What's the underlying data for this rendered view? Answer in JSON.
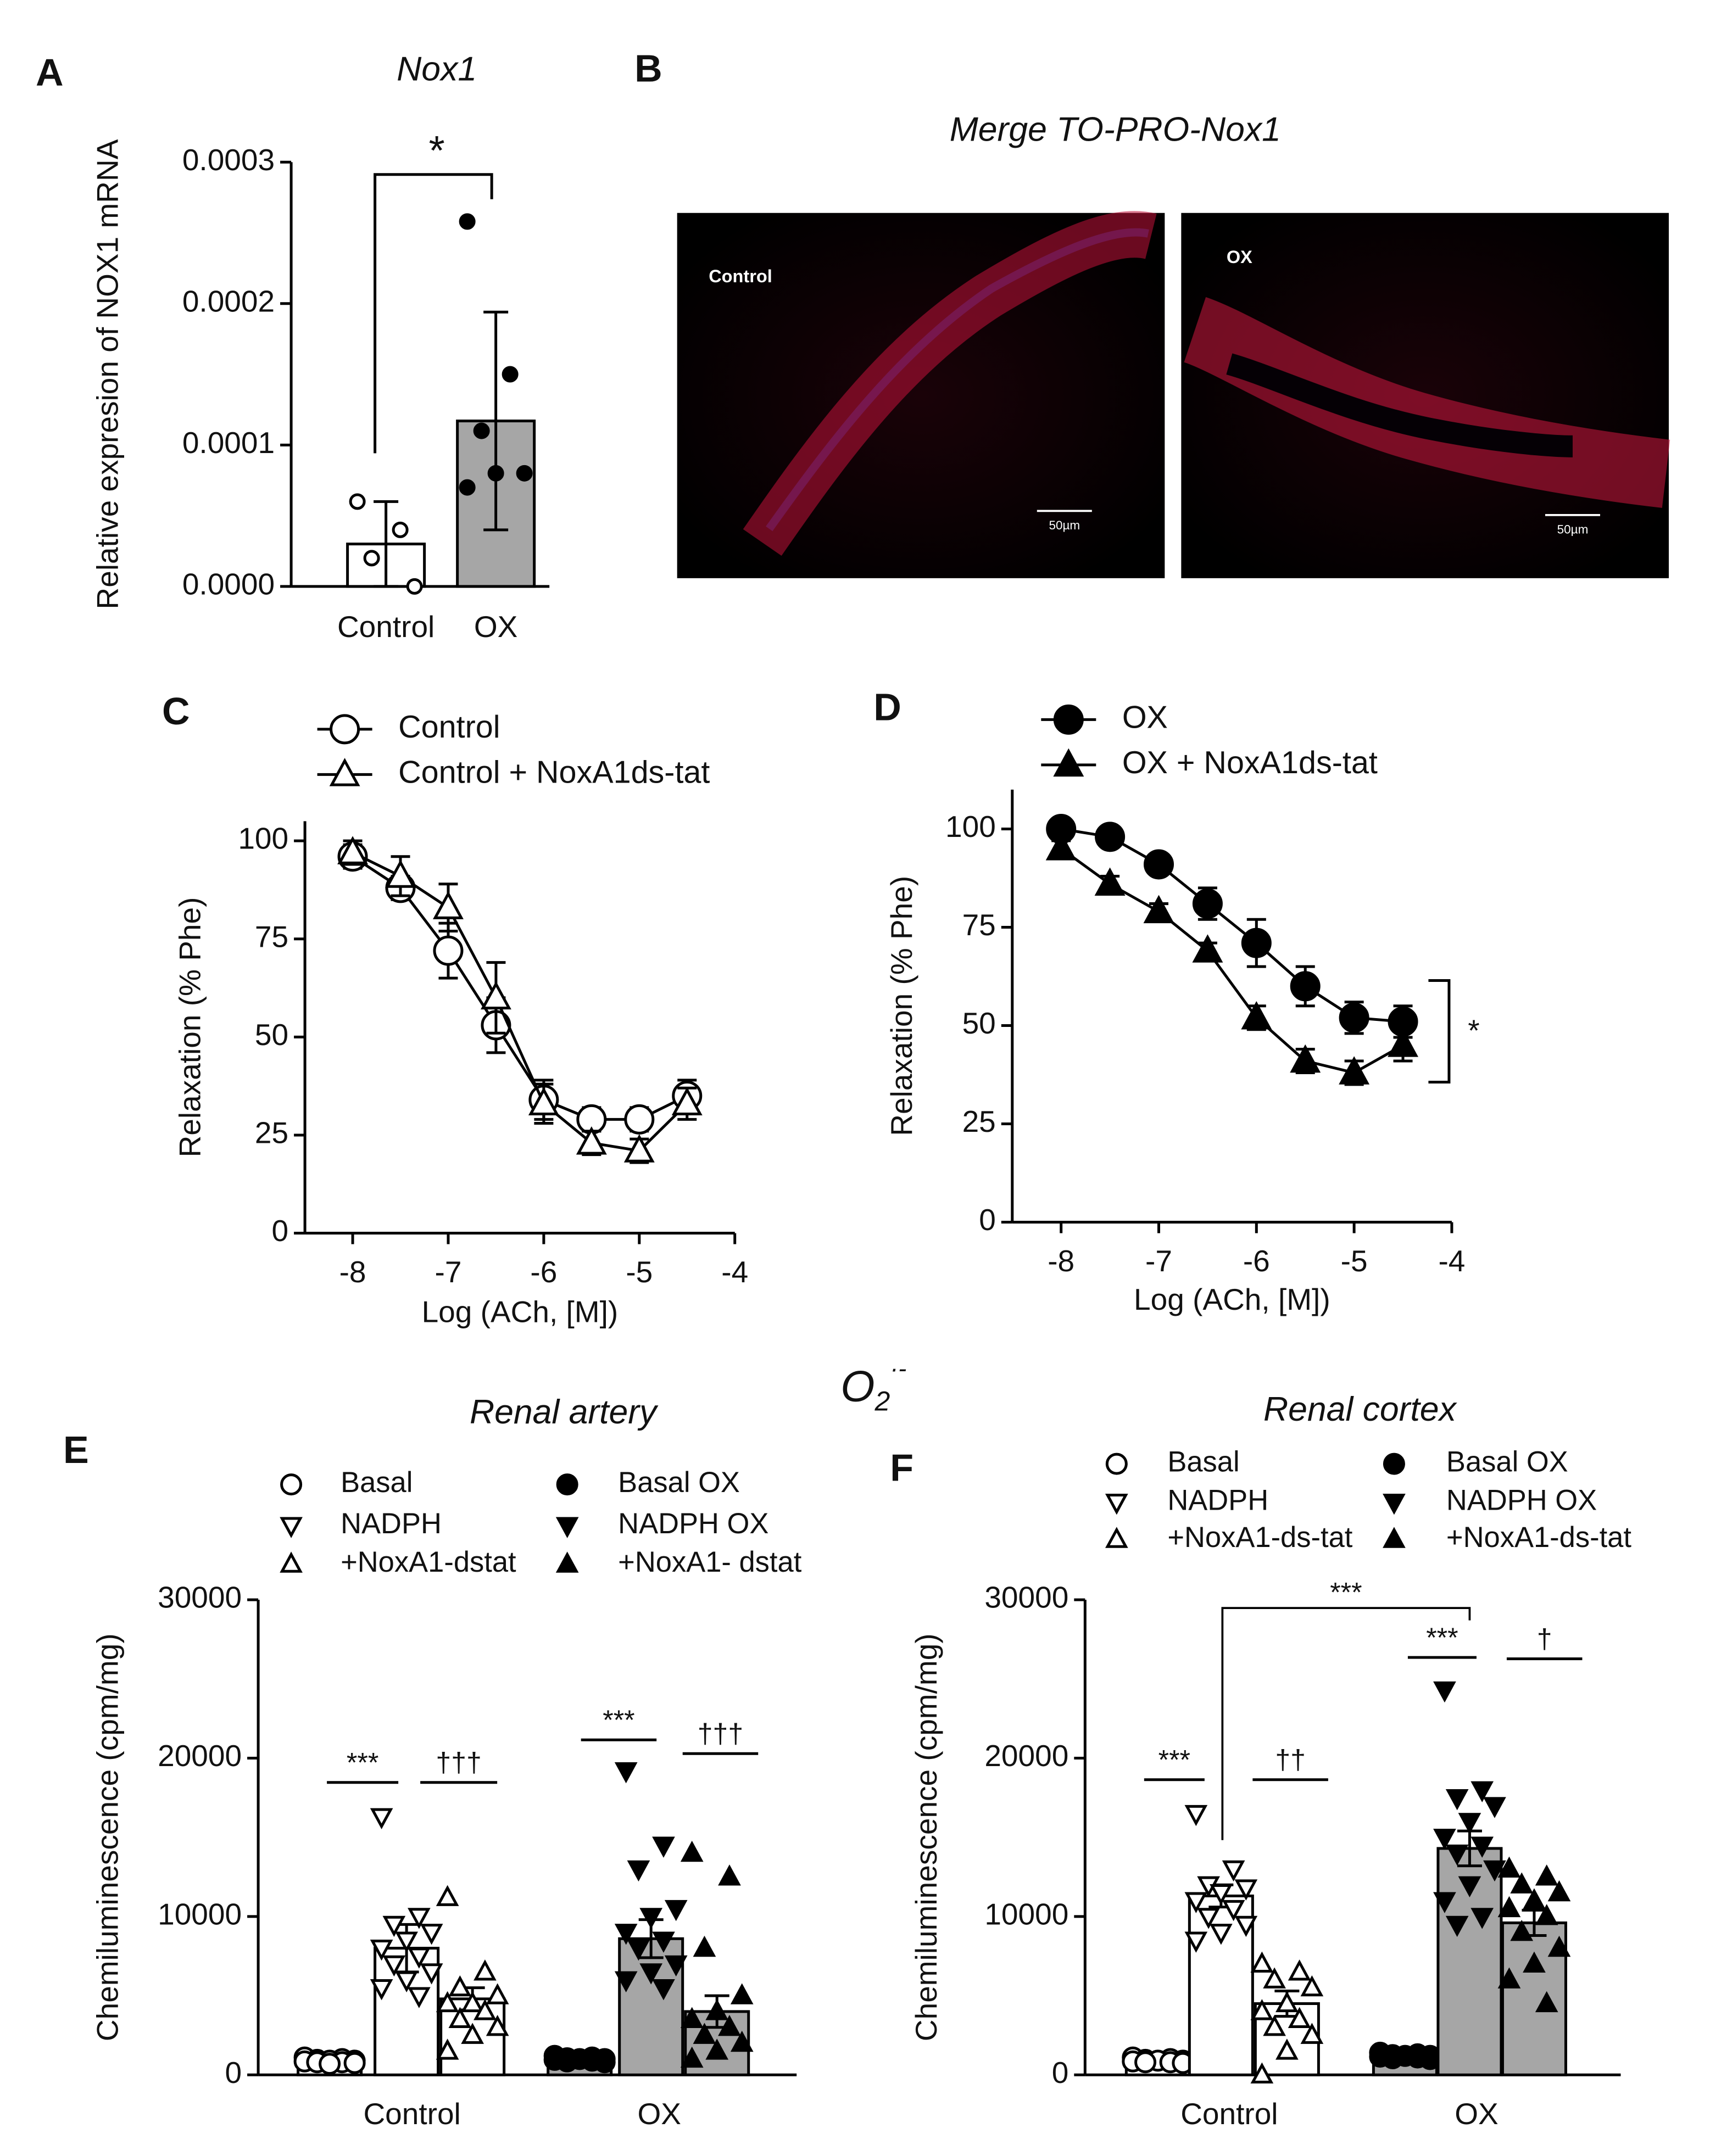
{
  "figure_label": {
    "base": "O",
    "sub": "2",
    "sup": "·-"
  },
  "panel_b": {
    "label": "B",
    "title": "Merge TO-PRO-Nox1",
    "images": [
      {
        "label": "Control",
        "scale": "50µm"
      },
      {
        "label": "OX",
        "scale": "50µm"
      }
    ]
  },
  "chart_data": [
    {
      "panel": "A",
      "type": "bar",
      "title": "Nox1",
      "ylabel": "Relative expresion of  NOX1 mRNA",
      "categories": [
        "Control",
        "OX"
      ],
      "values": [
        3e-05,
        0.000117
      ],
      "errors": [
        3e-05,
        7.7e-05
      ],
      "points": [
        [
          6e-05,
          4e-05,
          2e-05,
          0.0
        ],
        [
          0.000258,
          0.00015,
          0.00011,
          8e-05,
          8e-05,
          7e-05
        ]
      ],
      "colors": [
        "#ffffff",
        "#a6a6a6"
      ],
      "marker_fill": [
        "#ffffff",
        "#000000"
      ],
      "ylim": [
        0,
        0.0003
      ],
      "yticks": [
        {
          "value": 0,
          "label": "0.0000"
        },
        {
          "value": 0.0001,
          "label": "0.0001"
        },
        {
          "value": 0.0002,
          "label": "0.0002"
        },
        {
          "value": 0.0003,
          "label": "0.0003"
        }
      ],
      "annotation": "*"
    },
    {
      "panel": "C",
      "type": "line",
      "xlabel": "Log (ACh, [M])",
      "ylabel": "Relaxation (% Phe)",
      "x": [
        -8,
        -7.5,
        -7,
        -6.5,
        -6,
        -5.5,
        -5,
        -4.5
      ],
      "series": [
        {
          "name": "Control",
          "marker": "circle",
          "marker_fill": "#ffffff",
          "color": "#000000",
          "values": [
            96,
            88,
            72,
            53,
            34,
            29,
            29,
            35
          ],
          "errors": [
            3,
            3,
            7,
            7,
            5,
            3,
            3,
            4
          ]
        },
        {
          "name": "Control + NoxA1ds-tat",
          "marker": "triangle-up",
          "marker_fill": "#ffffff",
          "color": "#000000",
          "values": [
            97,
            91,
            83,
            60,
            33,
            23,
            21,
            33
          ],
          "errors": [
            3,
            5,
            6,
            9,
            5,
            3,
            3,
            4
          ]
        }
      ],
      "xlim": [
        -8.5,
        -4
      ],
      "xticks": [
        -8,
        -7,
        -6,
        -5,
        -4
      ],
      "ylim": [
        0,
        105
      ],
      "yticks": [
        0,
        25,
        50,
        75,
        100
      ]
    },
    {
      "panel": "D",
      "type": "line",
      "xlabel": "Log (ACh, [M])",
      "ylabel": "Relaxation (% Phe)",
      "x": [
        -8,
        -7.5,
        -7,
        -6.5,
        -6,
        -5.5,
        -5,
        -4.5
      ],
      "series": [
        {
          "name": "OX",
          "marker": "circle",
          "marker_fill": "#000000",
          "color": "#000000",
          "values": [
            100,
            98,
            91,
            81,
            71,
            60,
            52,
            51
          ],
          "errors": [
            2,
            2,
            2,
            4,
            6,
            5,
            4,
            4
          ]
        },
        {
          "name": "OX + NoxA1ds-tat",
          "marker": "triangle-up",
          "marker_fill": "#000000",
          "color": "#000000",
          "values": [
            95,
            86,
            79,
            69,
            52,
            41,
            38,
            45
          ],
          "errors": [
            2,
            2,
            2,
            2,
            3,
            3,
            3,
            4
          ]
        }
      ],
      "xlim": [
        -8.5,
        -4
      ],
      "xticks": [
        -8,
        -7,
        -6,
        -5,
        -4
      ],
      "ylim": [
        0,
        110
      ],
      "yticks": [
        0,
        25,
        50,
        75,
        100
      ],
      "annotation": "*"
    },
    {
      "panel": "E",
      "type": "grouped_bar",
      "title": "Renal artery",
      "ylabel": "Chemiluminescence (cpm/mg)",
      "categories": [
        "Control",
        "OX"
      ],
      "ylim": [
        0,
        30000
      ],
      "yticks": [
        0,
        10000,
        20000,
        30000
      ],
      "series": [
        {
          "name": "Basal",
          "marker": "circle",
          "marker_fill": "#ffffff",
          "color": "#ffffff",
          "value": 900,
          "error": 100,
          "points": [
            1100,
            1000,
            950,
            900,
            900,
            850,
            800,
            800,
            750,
            700
          ]
        },
        {
          "name": "NADPH",
          "marker": "triangle-down",
          "marker_fill": "#ffffff",
          "color": "#ffffff",
          "value": 8000,
          "error": 1500,
          "points": [
            16300,
            10000,
            9500,
            9000,
            8500,
            8000,
            7500,
            7000,
            6500,
            6000,
            5500,
            5000
          ]
        },
        {
          "name": "+NoxA1-dstat",
          "marker": "triangle-up",
          "marker_fill": "#ffffff",
          "color": "#ffffff",
          "value": 4800,
          "error": 700,
          "points": [
            11200,
            6500,
            5500,
            5000,
            4500,
            4500,
            4000,
            3500,
            3000,
            2500,
            1500
          ]
        },
        {
          "name": "Basal OX",
          "marker": "circle",
          "marker_fill": "#000000",
          "color": "#a6a6a6",
          "value": 1000,
          "error": 100,
          "points": [
            1200,
            1100,
            1050,
            1000,
            1000,
            950,
            900,
            850,
            800
          ]
        },
        {
          "name": "NADPH OX",
          "marker": "triangle-down",
          "marker_fill": "#000000",
          "color": "#a6a6a6",
          "value": 8600,
          "error": 1200,
          "points": [
            19200,
            14500,
            13000,
            10500,
            10000,
            9000,
            8500,
            8000,
            7000,
            6500,
            6000,
            5500
          ]
        },
        {
          "name": "+NoxA1- dstat",
          "marker": "triangle-up",
          "marker_fill": "#000000",
          "color": "#a6a6a6",
          "value": 4000,
          "error": 1000,
          "points": [
            14000,
            12500,
            8000,
            5000,
            4000,
            3500,
            3000,
            2500,
            2000,
            1500,
            1000
          ]
        }
      ],
      "annotations": [
        "***",
        "†††",
        "***",
        "†††"
      ]
    },
    {
      "panel": "F",
      "type": "grouped_bar",
      "title": "Renal cortex",
      "ylabel": "Chemiluminescence (cpm/mg)",
      "categories": [
        "Control",
        "OX"
      ],
      "ylim": [
        0,
        30000
      ],
      "yticks": [
        0,
        10000,
        20000,
        30000
      ],
      "series": [
        {
          "name": "Basal",
          "marker": "circle",
          "marker_fill": "#ffffff",
          "color": "#ffffff",
          "value": 900,
          "error": 100,
          "points": [
            1100,
            1000,
            950,
            900,
            900,
            850,
            800,
            800,
            750
          ]
        },
        {
          "name": "NADPH",
          "marker": "triangle-down",
          "marker_fill": "#ffffff",
          "color": "#ffffff",
          "value": 11300,
          "error": 700,
          "points": [
            16500,
            13000,
            12000,
            11800,
            11500,
            11000,
            10500,
            10000,
            9500,
            9000,
            8500
          ]
        },
        {
          "name": "+NoxA1-ds-tat",
          "marker": "triangle-up",
          "marker_fill": "#ffffff",
          "color": "#ffffff",
          "value": 4500,
          "error": 800,
          "points": [
            7000,
            6500,
            6000,
            5500,
            4500,
            4000,
            3500,
            3000,
            2500,
            1500,
            0
          ]
        },
        {
          "name": "Basal OX",
          "marker": "circle",
          "marker_fill": "#000000",
          "color": "#a6a6a6",
          "value": 1200,
          "error": 100,
          "points": [
            1400,
            1300,
            1250,
            1200,
            1200,
            1150,
            1100,
            1050,
            1000
          ]
        },
        {
          "name": "NADPH OX",
          "marker": "triangle-down",
          "marker_fill": "#000000",
          "color": "#a6a6a6",
          "value": 14300,
          "error": 1100,
          "points": [
            24300,
            18000,
            17500,
            17000,
            16000,
            15000,
            14500,
            14000,
            13000,
            12000,
            11000,
            10000,
            9500
          ]
        },
        {
          "name": "+NoxA1-ds-tat",
          "marker": "triangle-up",
          "marker_fill": "#000000",
          "color": "#a6a6a6",
          "value": 9600,
          "error": 800,
          "points": [
            13000,
            12500,
            12000,
            11500,
            11000,
            10500,
            10000,
            9000,
            8000,
            7000,
            6000,
            4500
          ]
        }
      ],
      "annotations": [
        "***",
        "††",
        "***",
        "***",
        "†"
      ]
    }
  ]
}
